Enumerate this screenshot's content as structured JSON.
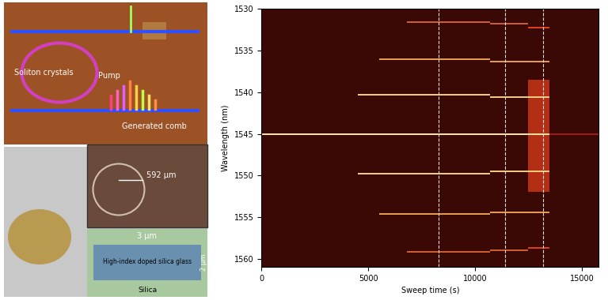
{
  "chart_data": {
    "type": "segments",
    "xlabel": "Sweep time (s)",
    "ylabel": "Wavelength (nm)",
    "xlim": [
      0,
      15800
    ],
    "xticks": [
      0,
      5000,
      10000,
      15000
    ],
    "ylim": [
      1561,
      1530
    ],
    "yticks": [
      1530,
      1535,
      1540,
      1545,
      1550,
      1555,
      1560
    ],
    "markers": [
      8300,
      11400,
      13200
    ],
    "noise_band": {
      "x": [
        12500,
        13500
      ],
      "y": [
        1538.5,
        1552
      ],
      "color": "#c8361a"
    },
    "segments": [
      {
        "wavelength": 1545.0,
        "start": 0,
        "end": 13500,
        "color": "#ffe9a0"
      },
      {
        "wavelength": 1545.0,
        "start": 13500,
        "end": 15800,
        "color": "#a02010"
      },
      {
        "wavelength": 1540.3,
        "start": 4500,
        "end": 10700,
        "color": "#f5d080"
      },
      {
        "wavelength": 1540.6,
        "start": 10700,
        "end": 13500,
        "color": "#f5d080"
      },
      {
        "wavelength": 1549.8,
        "start": 4500,
        "end": 10700,
        "color": "#f5d080"
      },
      {
        "wavelength": 1549.5,
        "start": 10700,
        "end": 13500,
        "color": "#f5d080"
      },
      {
        "wavelength": 1536.0,
        "start": 5500,
        "end": 10700,
        "color": "#e8a050"
      },
      {
        "wavelength": 1536.3,
        "start": 10700,
        "end": 13500,
        "color": "#e8a050"
      },
      {
        "wavelength": 1554.6,
        "start": 5500,
        "end": 10700,
        "color": "#e8a050"
      },
      {
        "wavelength": 1554.4,
        "start": 10700,
        "end": 13500,
        "color": "#e8a050"
      },
      {
        "wavelength": 1531.6,
        "start": 6800,
        "end": 10700,
        "color": "#d06030"
      },
      {
        "wavelength": 1531.8,
        "start": 10700,
        "end": 12500,
        "color": "#d06030"
      },
      {
        "wavelength": 1532.2,
        "start": 12500,
        "end": 13500,
        "color": "#e04020"
      },
      {
        "wavelength": 1559.2,
        "start": 6800,
        "end": 10700,
        "color": "#d06030"
      },
      {
        "wavelength": 1559.0,
        "start": 10700,
        "end": 12500,
        "color": "#d06030"
      },
      {
        "wavelength": 1558.7,
        "start": 12500,
        "end": 13500,
        "color": "#e04020"
      }
    ]
  },
  "illustration": {
    "soliton": "Soliton crystals",
    "pump": "Pump",
    "comb": "Generated comb",
    "radius": "592 μm",
    "width": "3 μm",
    "height": "2 μm",
    "core": "High-index doped silica glass",
    "cladding": "Silica"
  }
}
